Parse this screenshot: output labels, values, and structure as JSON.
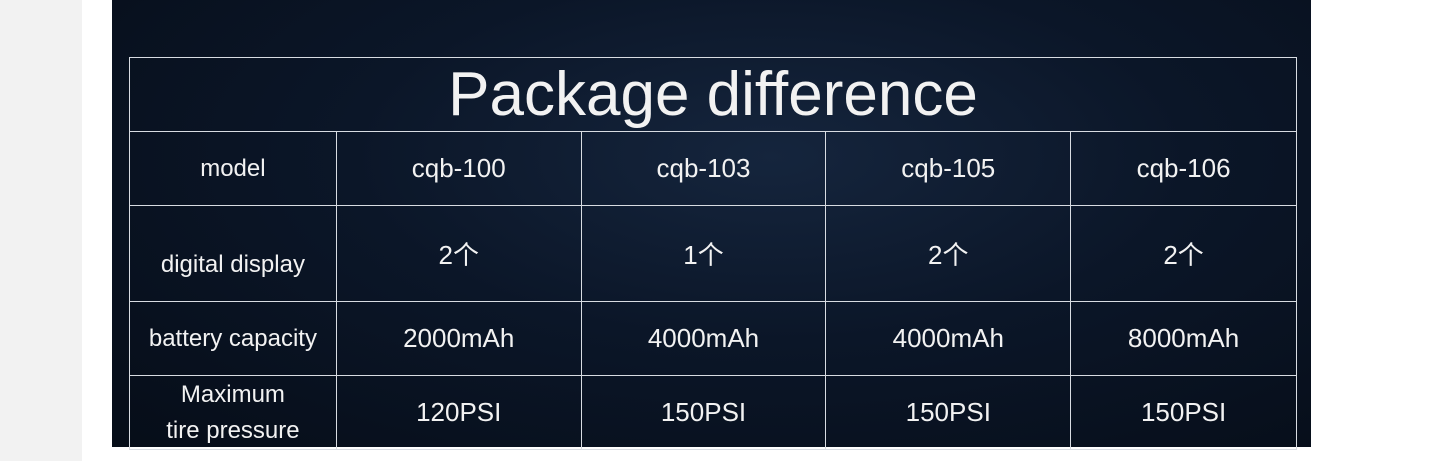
{
  "title": "Package difference",
  "rows": [
    {
      "label": "model",
      "values": [
        "cqb-100",
        "cqb-103",
        "cqb-105",
        "cqb-106"
      ]
    },
    {
      "label": "digital display",
      "values": [
        "2个",
        "1个",
        "2个",
        "2个"
      ]
    },
    {
      "label": "battery capacity",
      "values": [
        "2000mAh",
        "4000mAh",
        "4000mAh",
        "8000mAh"
      ]
    },
    {
      "label": "Maximum\ntire pressure",
      "values": [
        "120PSI",
        "150PSI",
        "150PSI",
        "150PSI"
      ]
    }
  ],
  "colors": {
    "background": "#0b1628",
    "text": "#f2f2f2",
    "grid": "#d8dce2"
  }
}
